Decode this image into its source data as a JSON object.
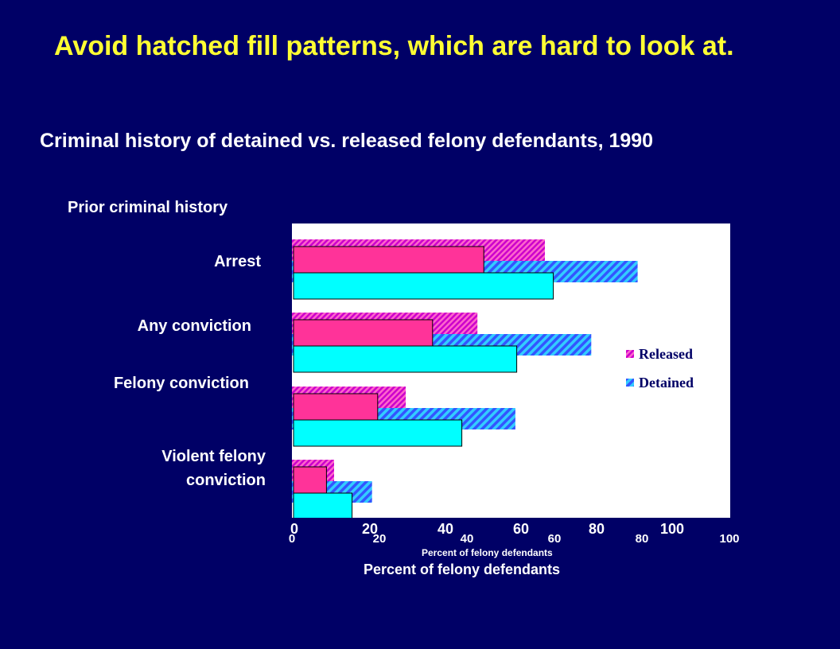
{
  "slide": {
    "title": "Avoid hatched fill patterns, which are hard to look at."
  },
  "chart_data": {
    "type": "bar",
    "orientation": "horizontal",
    "title": "Criminal history of detained vs. released felony defendants, 1990",
    "category_axis_label": "Prior criminal history",
    "xlabel": "Percent of felony defendants",
    "xlim": [
      0,
      100
    ],
    "categories": [
      "Arrest",
      "Any conviction",
      "Felony conviction",
      "Violent felony\nconviction"
    ],
    "x_ticks": [
      "0",
      "20",
      "40",
      "60",
      "80",
      "100"
    ],
    "legend": {
      "placement": "right",
      "entries": [
        "Released",
        "Detained"
      ]
    },
    "grid": false,
    "series": [
      {
        "name": "Released",
        "style": "hatched",
        "color": "#cc00cc",
        "values": [
          60,
          44,
          27,
          10
        ]
      },
      {
        "name": "Detained",
        "style": "hatched",
        "color": "#3366ff",
        "values": [
          82,
          71,
          53,
          19
        ]
      },
      {
        "style": "solid",
        "color": "#ff3399",
        "values": [
          52,
          38,
          23,
          9
        ]
      },
      {
        "style": "solid",
        "color": "#00ffff",
        "values": [
          71,
          61,
          46,
          16
        ]
      }
    ],
    "back_layer": {
      "xlabel": "Percent of felony defendants",
      "x_ticks": [
        "0",
        "20",
        "40",
        "60",
        "80",
        "100"
      ]
    }
  }
}
